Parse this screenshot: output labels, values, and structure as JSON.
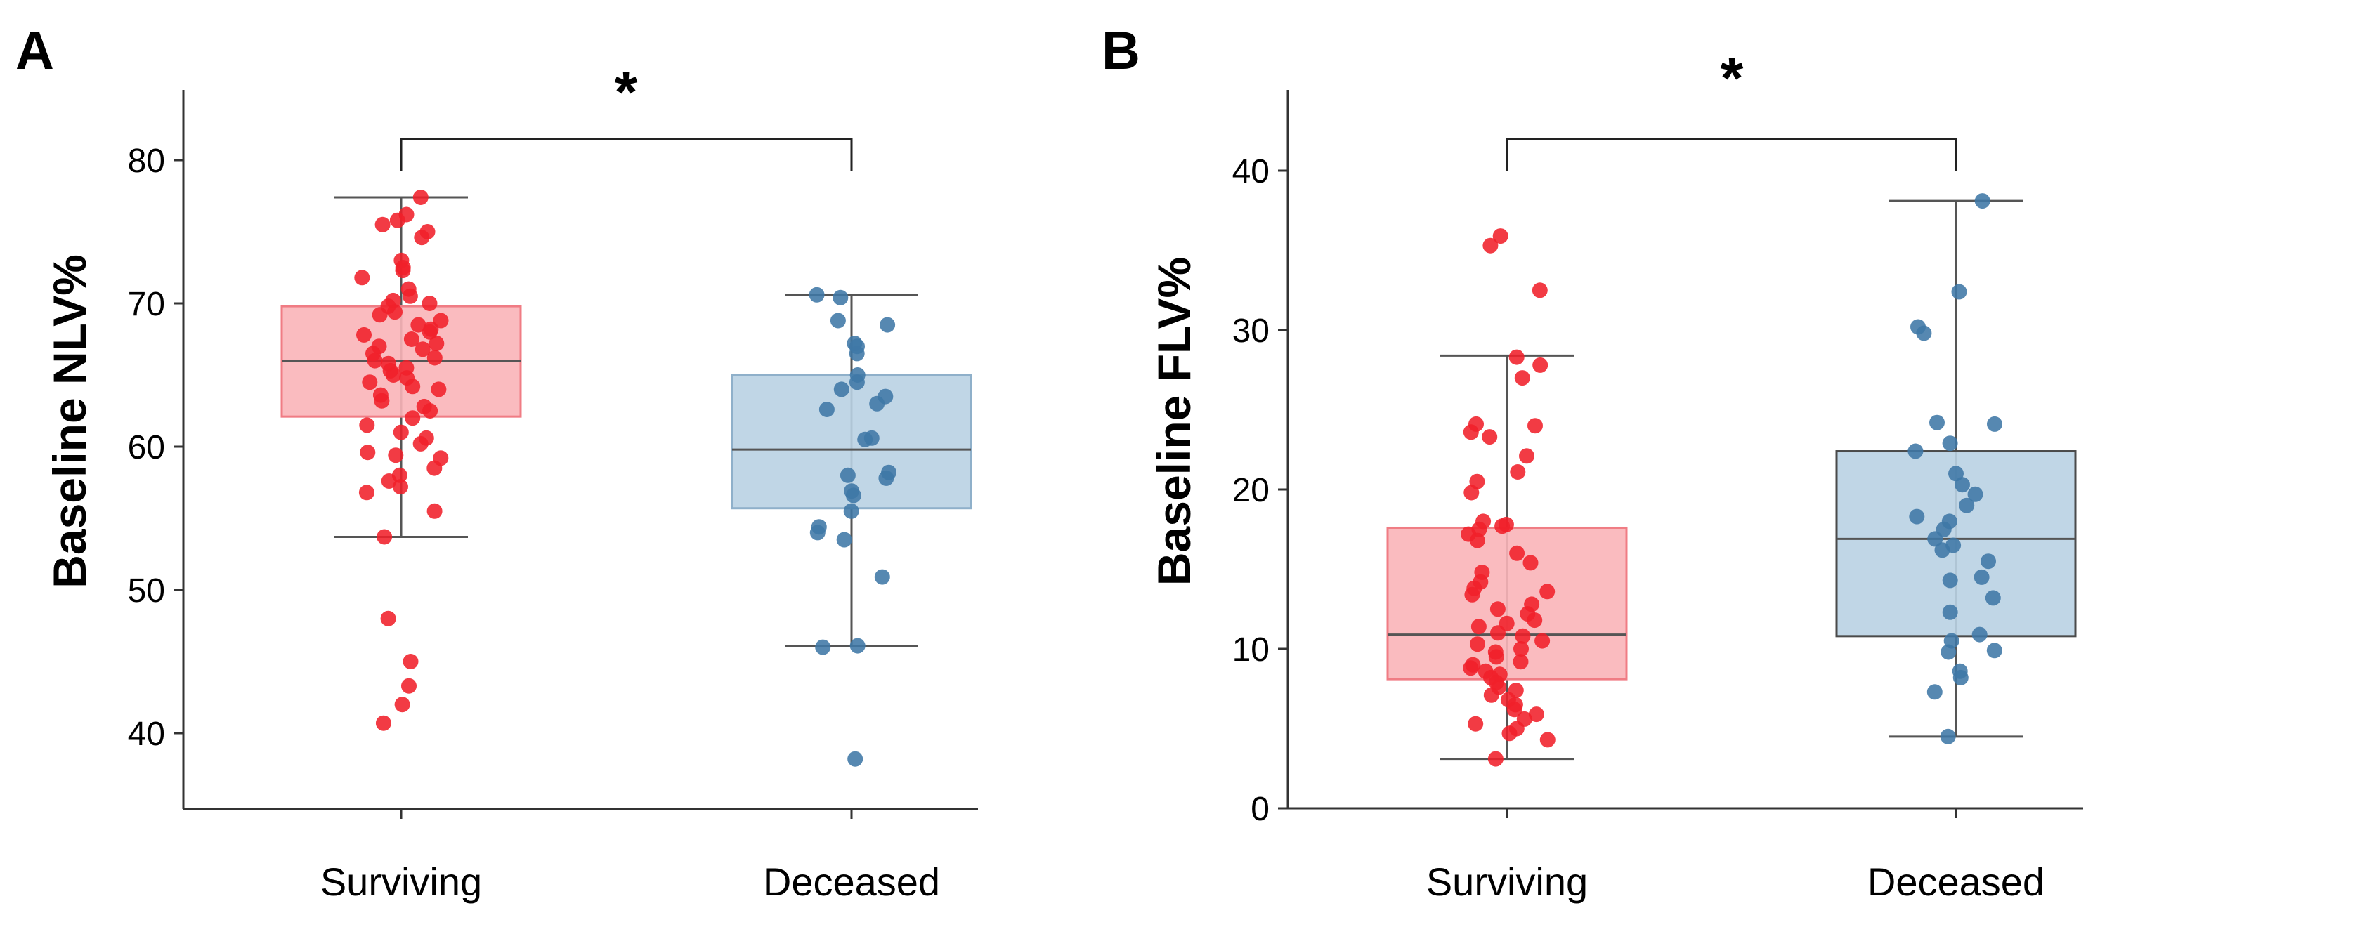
{
  "chart_data": [
    {
      "type": "box",
      "panel_label": "A",
      "title": "",
      "xlabel": "",
      "ylabel": "Baseline NLV%",
      "categories": [
        "Surviving",
        "Deceased"
      ],
      "ylim": [
        36,
        85
      ],
      "yticks": [
        40,
        50,
        60,
        70,
        80
      ],
      "grid": false,
      "series": [
        {
          "name": "Surviving",
          "color": "#f0202a",
          "box_fill": "#f9b4b8",
          "box_edge": "#f07c84",
          "whisker_low": 53.7,
          "q1": 62.1,
          "median": 66.0,
          "q3": 69.8,
          "whisker_high": 77.4,
          "points": [
            77.4,
            76.2,
            75.8,
            75.5,
            75.0,
            74.6,
            73.0,
            72.5,
            72.3,
            71.8,
            71.0,
            70.5,
            70.2,
            70.0,
            69.8,
            69.4,
            69.2,
            68.8,
            68.5,
            68.2,
            68.0,
            67.8,
            67.5,
            67.2,
            67.0,
            66.8,
            66.5,
            66.2,
            66.0,
            65.8,
            65.5,
            65.3,
            65.0,
            64.8,
            64.5,
            64.2,
            64.0,
            63.6,
            63.2,
            62.8,
            62.5,
            62.0,
            61.5,
            61.0,
            60.6,
            60.2,
            59.6,
            59.4,
            59.2,
            58.5,
            58.0,
            57.6,
            57.2,
            56.8,
            55.5,
            53.7,
            48.0,
            45.0,
            43.3,
            42.0,
            40.7
          ]
        },
        {
          "name": "Deceased",
          "color": "#3f77a6",
          "box_fill": "#b9d1e3",
          "box_edge": "#8fb0ca",
          "whisker_low": 46.1,
          "q1": 55.7,
          "median": 59.8,
          "q3": 65.0,
          "whisker_high": 70.6,
          "points": [
            70.6,
            70.4,
            68.8,
            68.5,
            67.2,
            67.0,
            66.5,
            65.0,
            64.5,
            64.0,
            63.5,
            63.0,
            62.6,
            60.6,
            60.5,
            58.2,
            58.0,
            57.8,
            56.9,
            56.6,
            55.5,
            54.4,
            54.0,
            53.5,
            50.9,
            46.1,
            46.0,
            38.2
          ]
        }
      ],
      "significance": "*"
    },
    {
      "type": "box",
      "panel_label": "B",
      "title": "",
      "xlabel": "",
      "ylabel": "Baseline FLV%",
      "categories": [
        "Surviving",
        "Deceased"
      ],
      "ylim": [
        0,
        45
      ],
      "yticks": [
        0,
        10,
        20,
        30,
        40
      ],
      "grid": false,
      "series": [
        {
          "name": "Surviving",
          "color": "#f0202a",
          "box_fill": "#f9b4b8",
          "box_edge": "#f07c84",
          "whisker_low": 3.1,
          "q1": 8.1,
          "median": 10.9,
          "q3": 17.6,
          "whisker_high": 28.4,
          "points": [
            35.9,
            35.3,
            32.5,
            28.3,
            27.8,
            27.0,
            24.1,
            24.0,
            23.6,
            23.3,
            22.1,
            21.1,
            20.5,
            19.8,
            18.0,
            17.8,
            17.7,
            17.5,
            17.2,
            16.8,
            16.0,
            15.4,
            14.8,
            14.2,
            13.8,
            13.6,
            13.4,
            12.8,
            12.5,
            12.2,
            11.8,
            11.6,
            11.4,
            11.0,
            10.8,
            10.5,
            10.3,
            10.0,
            9.8,
            9.5,
            9.2,
            9.0,
            8.8,
            8.6,
            8.4,
            8.2,
            7.9,
            7.6,
            7.4,
            7.1,
            6.8,
            6.5,
            6.2,
            5.9,
            5.6,
            5.3,
            5.0,
            4.7,
            4.3,
            3.1
          ]
        },
        {
          "name": "Deceased",
          "color": "#3f77a6",
          "box_fill": "#b9d1e3",
          "box_edge": "#4a4a4a",
          "whisker_low": 4.5,
          "q1": 10.8,
          "median": 16.9,
          "q3": 22.4,
          "whisker_high": 38.1,
          "points": [
            38.1,
            32.4,
            30.2,
            29.8,
            24.2,
            24.1,
            22.9,
            22.4,
            21.0,
            20.3,
            19.7,
            19.0,
            18.3,
            18.0,
            17.5,
            16.9,
            16.5,
            16.2,
            15.5,
            14.5,
            14.3,
            13.2,
            12.3,
            10.9,
            10.5,
            9.9,
            9.8,
            8.6,
            8.2,
            7.3,
            4.5
          ]
        }
      ],
      "significance": "*"
    }
  ]
}
